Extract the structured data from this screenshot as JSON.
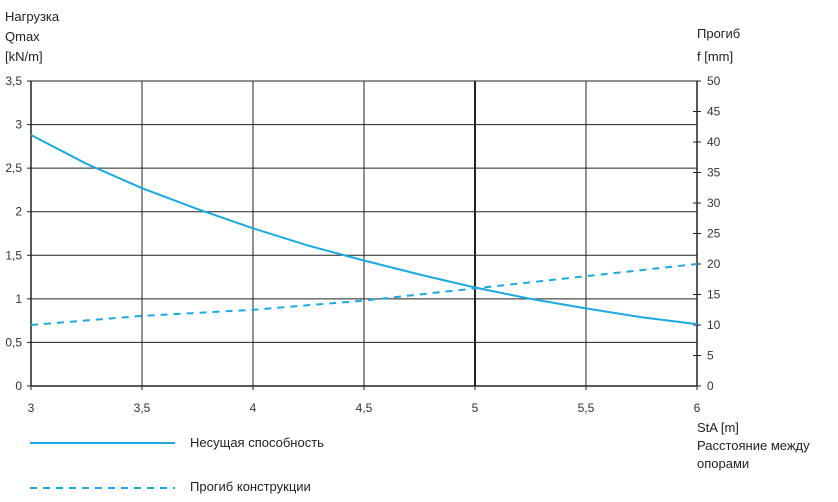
{
  "chart_data": {
    "type": "line",
    "x_title": "StA [m]",
    "x_subtitle_lines": [
      "Расстояние между",
      "опорами"
    ],
    "y_left_title_lines": [
      "Нагрузка",
      "Qmax",
      "[kN/m]"
    ],
    "y_right_title_lines": [
      "Прогиб",
      "f [mm]"
    ],
    "x_ticks": [
      "3",
      "3,5",
      "4",
      "4,5",
      "5",
      "5,5",
      "6"
    ],
    "y_left_ticks": [
      "0",
      "0,5",
      "1",
      "1,5",
      "2",
      "2,5",
      "3",
      "3,5"
    ],
    "y_right_ticks": [
      "0",
      "5",
      "10",
      "15",
      "20",
      "25",
      "30",
      "35",
      "40",
      "45",
      "50"
    ],
    "xlim": [
      3,
      6
    ],
    "ylim_left": [
      0,
      3.5
    ],
    "ylim_right": [
      0,
      50
    ],
    "grid": true,
    "series": [
      {
        "name": "Несущая способность",
        "axis": "left",
        "style": "solid",
        "color": "#1ba9e1",
        "x": [
          3,
          3.25,
          3.5,
          3.75,
          4,
          4.25,
          4.5,
          4.75,
          5,
          5.25,
          5.5,
          5.75,
          6
        ],
        "y": [
          2.88,
          2.55,
          2.27,
          2.03,
          1.81,
          1.61,
          1.44,
          1.28,
          1.13,
          1.0,
          0.89,
          0.79,
          0.71
        ]
      },
      {
        "name": "Прогиб конструкции",
        "axis": "right",
        "style": "dashed",
        "color": "#1ba9e1",
        "x": [
          3,
          3.5,
          4,
          4.5,
          5,
          5.5,
          6
        ],
        "y": [
          10,
          11.5,
          12.5,
          14,
          16,
          18,
          20
        ]
      }
    ],
    "legend_position": "bottom-left"
  }
}
